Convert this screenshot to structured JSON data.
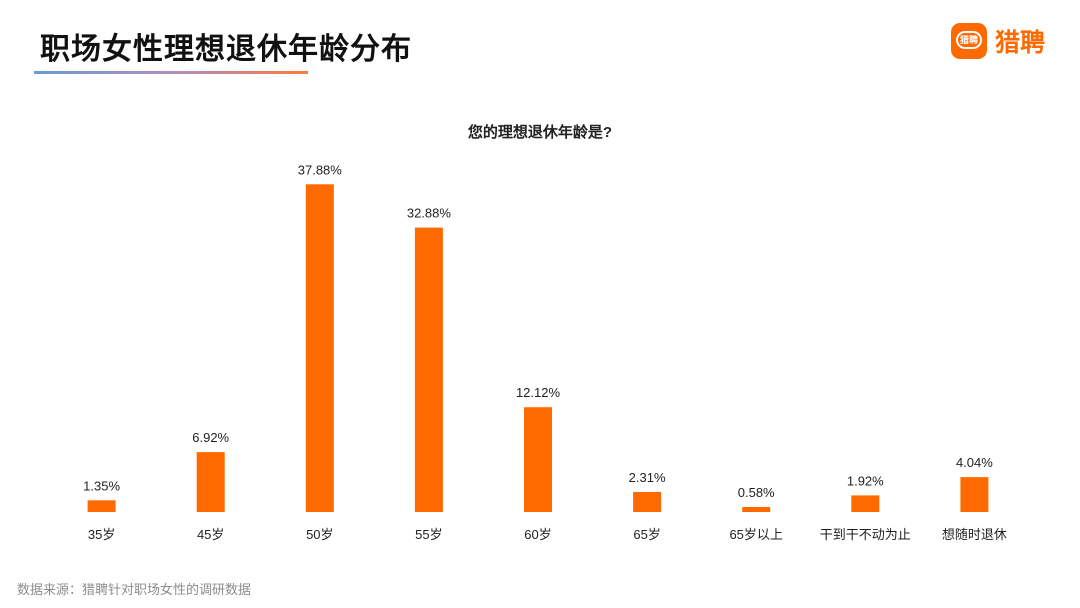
{
  "page": {
    "title": "职场女性理想退休年龄分布",
    "logo_text": "猎聘",
    "logo_mark_text": "猎聘",
    "source": "数据来源：猎聘针对职场女性的调研数据"
  },
  "colors": {
    "bar": "#ff6a00",
    "accent": "#ff6a00",
    "title_text": "#111111",
    "label_text": "#222222",
    "source_text": "#8c8c8c"
  },
  "chart_data": {
    "type": "bar",
    "title": "您的理想退休年龄是?",
    "categories": [
      "35岁",
      "45岁",
      "50岁",
      "55岁",
      "60岁",
      "65岁",
      "65岁以上",
      "干到干不动为止",
      "想随时退休"
    ],
    "values": [
      1.35,
      6.92,
      37.88,
      32.88,
      12.12,
      2.31,
      0.58,
      1.92,
      4.04
    ],
    "value_labels": [
      "1.35%",
      "6.92%",
      "37.88%",
      "32.88%",
      "12.12%",
      "2.31%",
      "0.58%",
      "1.92%",
      "4.04%"
    ],
    "unit": "%",
    "xlabel": "",
    "ylabel": "",
    "ylim": [
      0,
      40
    ],
    "grid": false,
    "legend": "none"
  }
}
